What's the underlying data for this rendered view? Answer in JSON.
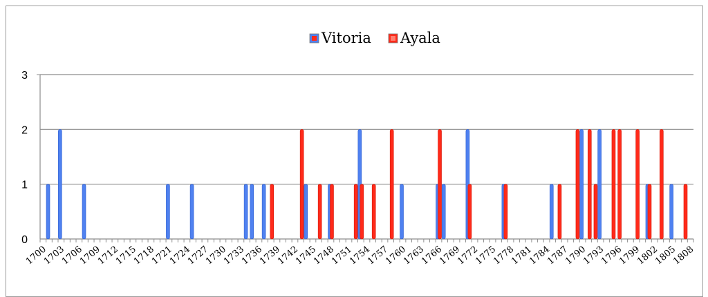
{
  "chart_data": {
    "type": "bar",
    "title": "",
    "xlabel": "",
    "ylabel": "",
    "ylim": [
      0,
      3
    ],
    "yticks": [
      0,
      1,
      2,
      3
    ],
    "grid": "horizontal",
    "legend": "top-center",
    "x_start": 1700,
    "x_end": 1808,
    "x_tick_labels": [
      "1700",
      "1703",
      "1706",
      "1709",
      "1712",
      "1715",
      "1718",
      "1721",
      "1724",
      "1727",
      "1730",
      "1733",
      "1736",
      "1739",
      "1742",
      "1745",
      "1748",
      "1751",
      "1754",
      "1757",
      "1760",
      "1763",
      "1766",
      "1769",
      "1772",
      "1775",
      "1778",
      "1781",
      "1784",
      "1787",
      "1790",
      "1793",
      "1796",
      "1799",
      "1802",
      "1805",
      "1808"
    ],
    "series": [
      {
        "name": "Vitoria",
        "color": "#4f81f0",
        "points": [
          {
            "x": 1701,
            "y": 1
          },
          {
            "x": 1703,
            "y": 2
          },
          {
            "x": 1707,
            "y": 1
          },
          {
            "x": 1721,
            "y": 1
          },
          {
            "x": 1725,
            "y": 1
          },
          {
            "x": 1734,
            "y": 1
          },
          {
            "x": 1735,
            "y": 1
          },
          {
            "x": 1737,
            "y": 1
          },
          {
            "x": 1744,
            "y": 1
          },
          {
            "x": 1748,
            "y": 1
          },
          {
            "x": 1753,
            "y": 2
          },
          {
            "x": 1760,
            "y": 1
          },
          {
            "x": 1766,
            "y": 1
          },
          {
            "x": 1767,
            "y": 1
          },
          {
            "x": 1771,
            "y": 2
          },
          {
            "x": 1777,
            "y": 1
          },
          {
            "x": 1785,
            "y": 1
          },
          {
            "x": 1790,
            "y": 2
          },
          {
            "x": 1793,
            "y": 2
          },
          {
            "x": 1801,
            "y": 1
          },
          {
            "x": 1805,
            "y": 1
          }
        ]
      },
      {
        "name": "Ayala",
        "color": "#ff2a1a",
        "points": [
          {
            "x": 1738,
            "y": 1
          },
          {
            "x": 1743,
            "y": 2
          },
          {
            "x": 1746,
            "y": 1
          },
          {
            "x": 1748,
            "y": 1
          },
          {
            "x": 1752,
            "y": 1
          },
          {
            "x": 1753,
            "y": 1
          },
          {
            "x": 1755,
            "y": 1
          },
          {
            "x": 1758,
            "y": 2
          },
          {
            "x": 1766,
            "y": 2
          },
          {
            "x": 1771,
            "y": 1
          },
          {
            "x": 1777,
            "y": 1
          },
          {
            "x": 1786,
            "y": 1
          },
          {
            "x": 1789,
            "y": 2
          },
          {
            "x": 1791,
            "y": 2
          },
          {
            "x": 1792,
            "y": 1
          },
          {
            "x": 1795,
            "y": 2
          },
          {
            "x": 1796,
            "y": 2
          },
          {
            "x": 1799,
            "y": 2
          },
          {
            "x": 1801,
            "y": 1
          },
          {
            "x": 1803,
            "y": 2
          },
          {
            "x": 1807,
            "y": 1
          }
        ]
      }
    ]
  }
}
